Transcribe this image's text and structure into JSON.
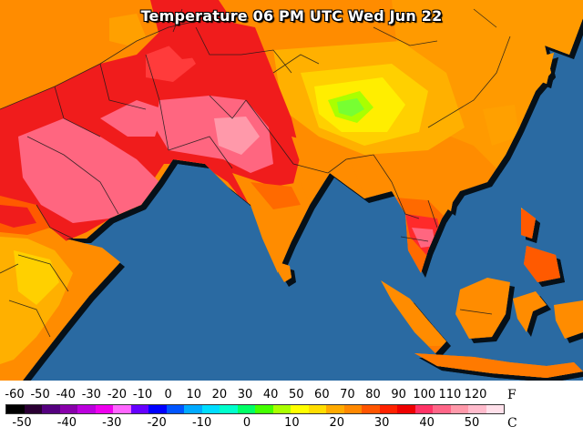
{
  "title": "Temperature 06 PM UTC Wed Jun 22",
  "legend": {
    "fahrenheit_ticks": [
      "-60",
      "-50",
      "-40",
      "-30",
      "-20",
      "-10",
      "0",
      "10",
      "20",
      "30",
      "40",
      "50",
      "60",
      "70",
      "80",
      "90",
      "100",
      "110",
      "120"
    ],
    "celsius_ticks": [
      "-50",
      "-40",
      "-30",
      "-20",
      "-10",
      "0",
      "10",
      "20",
      "30",
      "40",
      "50"
    ],
    "unit_f": "F",
    "unit_c": "C",
    "colors": [
      "#000000",
      "#2a0033",
      "#55007f",
      "#8800aa",
      "#bb00dd",
      "#ee00ee",
      "#ff66ff",
      "#6600ff",
      "#0000ff",
      "#0055ff",
      "#00aaff",
      "#00ddff",
      "#00ffcc",
      "#00ff66",
      "#44ff00",
      "#aaff00",
      "#ffff00",
      "#ffdd00",
      "#ffaa00",
      "#ff8800",
      "#ff5500",
      "#ff2200",
      "#ee0000",
      "#ff3366",
      "#ff6688",
      "#ff99aa",
      "#ffbbcc",
      "#ffe0ea"
    ]
  },
  "colors": {
    "ocean": "#2a6aa2",
    "hot_pink": "#ff6680",
    "red": "#f01e1e",
    "dark_orange": "#ff6a00",
    "orange": "#ff8c00",
    "yellow_orange": "#ffb000",
    "yellow": "#ffe600",
    "lime": "#aaff00",
    "green": "#66ff33"
  }
}
